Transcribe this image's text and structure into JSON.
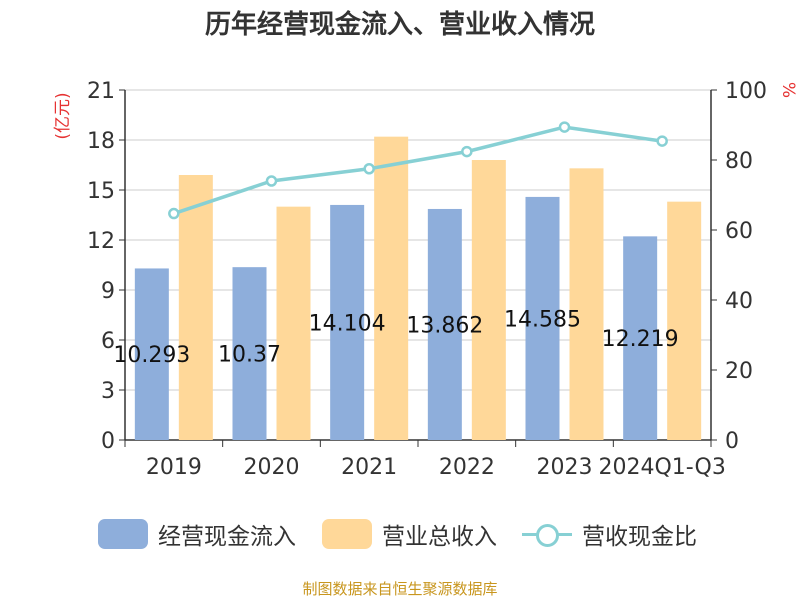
{
  "chart_data": {
    "type": "bar",
    "title": "历年经营现金流入、营业收入情况",
    "categories": [
      "2019",
      "2020",
      "2021",
      "2022",
      "2023",
      "2024Q1-Q3"
    ],
    "series": [
      {
        "name": "经营现金流入",
        "type": "bar",
        "axis": "left",
        "color": "#8eaedb",
        "values": [
          10.293,
          10.37,
          14.104,
          13.862,
          14.585,
          12.219
        ],
        "labels": [
          "10.293",
          "10.37",
          "14.104",
          "13.862",
          "14.585",
          "12.219"
        ]
      },
      {
        "name": "营业总收入",
        "type": "bar",
        "axis": "left",
        "color": "#ffd899",
        "values": [
          15.9,
          14.0,
          18.2,
          16.8,
          16.3,
          14.3
        ]
      },
      {
        "name": "营收现金比",
        "type": "line",
        "axis": "right",
        "color": "#87d0d4",
        "values": [
          64.7,
          74.0,
          77.5,
          82.4,
          89.4,
          85.4
        ]
      }
    ],
    "left_axis": {
      "label": "(亿元)",
      "min": 0,
      "max": 21,
      "ticks": [
        0,
        3,
        6,
        9,
        12,
        15,
        18,
        21
      ]
    },
    "right_axis": {
      "label": "%",
      "min": 0,
      "max": 100,
      "ticks": [
        0,
        20,
        40,
        60,
        80,
        100
      ]
    },
    "grid": true,
    "legend_position": "bottom"
  },
  "source": "制图数据来自恒生聚源数据库"
}
